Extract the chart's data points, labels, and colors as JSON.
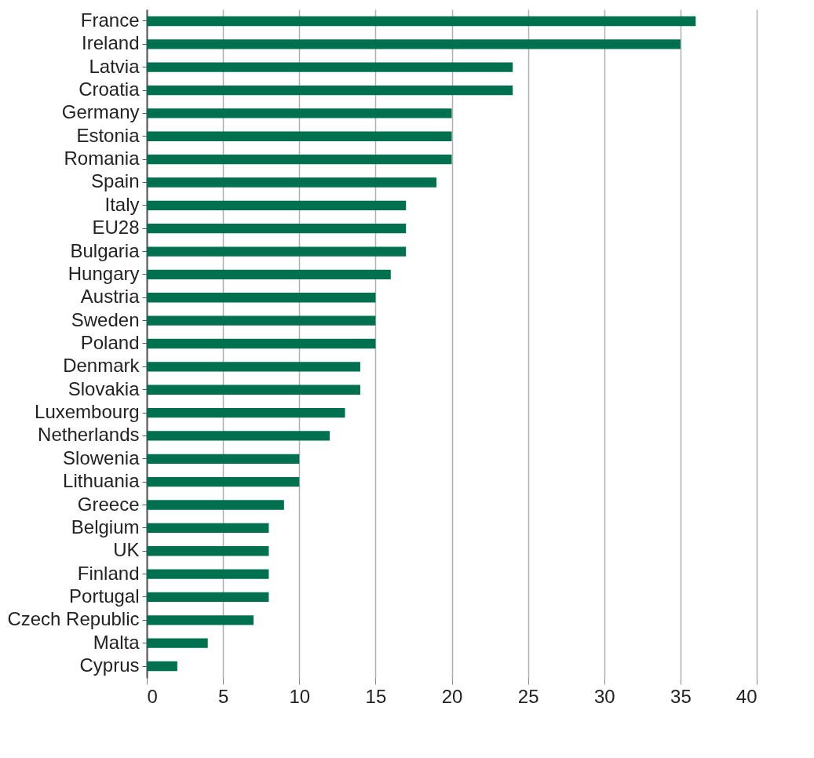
{
  "chart_data": {
    "type": "bar",
    "orientation": "horizontal",
    "categories": [
      "France",
      "Ireland",
      "Latvia",
      "Croatia",
      "Germany",
      "Estonia",
      "Romania",
      "Spain",
      "Italy",
      "EU28",
      "Bulgaria",
      "Hungary",
      "Austria",
      "Sweden",
      "Poland",
      "Denmark",
      "Slovakia",
      "Luxembourg",
      "Netherlands",
      "Slowenia",
      "Lithuania",
      "Greece",
      "Belgium",
      "UK",
      "Finland",
      "Portugal",
      "Czech Republic",
      "Malta",
      "Cyprus"
    ],
    "values": [
      36,
      35,
      24,
      24,
      20,
      20,
      20,
      19,
      17,
      17,
      17,
      16,
      15,
      15,
      15,
      14,
      14,
      13,
      12,
      10,
      10,
      9,
      8,
      8,
      8,
      8,
      7,
      4,
      2
    ],
    "color": "#00704f",
    "xlim": [
      0,
      40
    ],
    "xticks": [
      0,
      5,
      10,
      15,
      20,
      25,
      30,
      35,
      40
    ],
    "grid": "x"
  }
}
